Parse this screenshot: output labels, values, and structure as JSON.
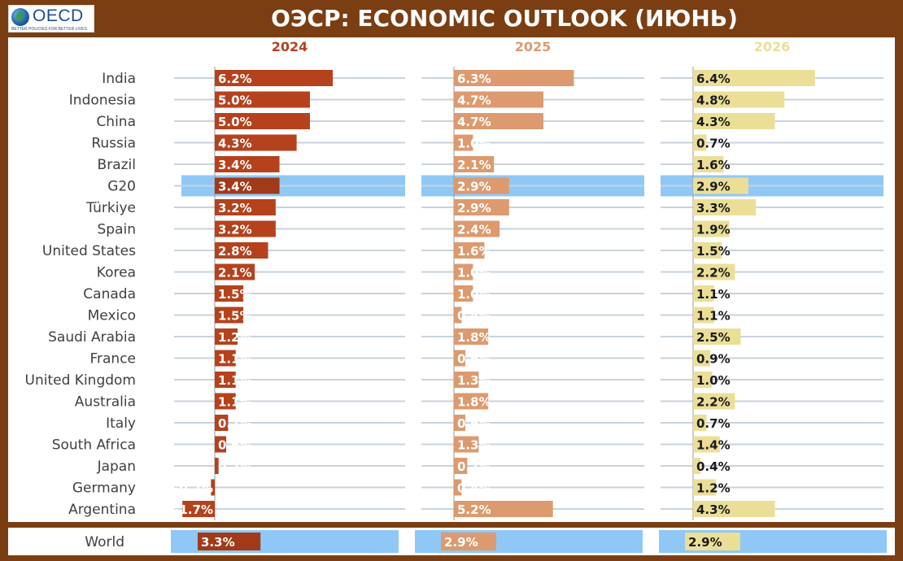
{
  "header": {
    "title": "ОЭСР: ECONOMIC OUTLOOK (ИЮНЬ)",
    "logo": {
      "wordmark": "OECD",
      "tagline": "BETTER POLICIES FOR BETTER LIVES",
      "icon": "globe-icon"
    }
  },
  "colors": {
    "background": "#7a3e12",
    "year_2024": "#b5421d",
    "year_2025": "#dc9a6e",
    "year_2026": "#ebdf98",
    "highlight": "#8fc8f7",
    "gridline": "#c9d3dc",
    "baseline": "#999999"
  },
  "chart_data": {
    "type": "bar",
    "orientation": "horizontal",
    "value_suffix": "%",
    "categories": [
      "India",
      "Indonesia",
      "China",
      "Russia",
      "Brazil",
      "G20",
      "Türkiye",
      "Spain",
      "United States",
      "Korea",
      "Canada",
      "Mexico",
      "Saudi Arabia",
      "France",
      "United Kingdom",
      "Australia",
      "Italy",
      "South Africa",
      "Japan",
      "Germany",
      "Argentina"
    ],
    "highlighted_category": "G20",
    "series": [
      {
        "name": "2024",
        "values": [
          6.2,
          5.0,
          5.0,
          4.3,
          3.4,
          3.4,
          3.2,
          3.2,
          2.8,
          2.1,
          1.5,
          1.5,
          1.2,
          1.1,
          1.1,
          1.1,
          0.7,
          0.6,
          0.2,
          -0.2,
          -1.7
        ]
      },
      {
        "name": "2025",
        "values": [
          6.3,
          4.7,
          4.7,
          1.0,
          2.1,
          2.9,
          2.9,
          2.4,
          1.6,
          1.0,
          1.0,
          0.4,
          1.8,
          0.6,
          1.3,
          1.8,
          0.6,
          1.3,
          0.7,
          0.4,
          5.2
        ]
      },
      {
        "name": "2026",
        "values": [
          6.4,
          4.8,
          4.3,
          0.7,
          1.6,
          2.9,
          3.3,
          1.9,
          1.5,
          2.2,
          1.1,
          1.1,
          2.5,
          0.9,
          1.0,
          2.2,
          0.7,
          1.4,
          0.4,
          1.2,
          4.3
        ]
      }
    ],
    "world": {
      "label": "World",
      "values": [
        3.3,
        2.9,
        2.9
      ]
    },
    "title": "",
    "xlabel": "",
    "ylabel": ""
  }
}
